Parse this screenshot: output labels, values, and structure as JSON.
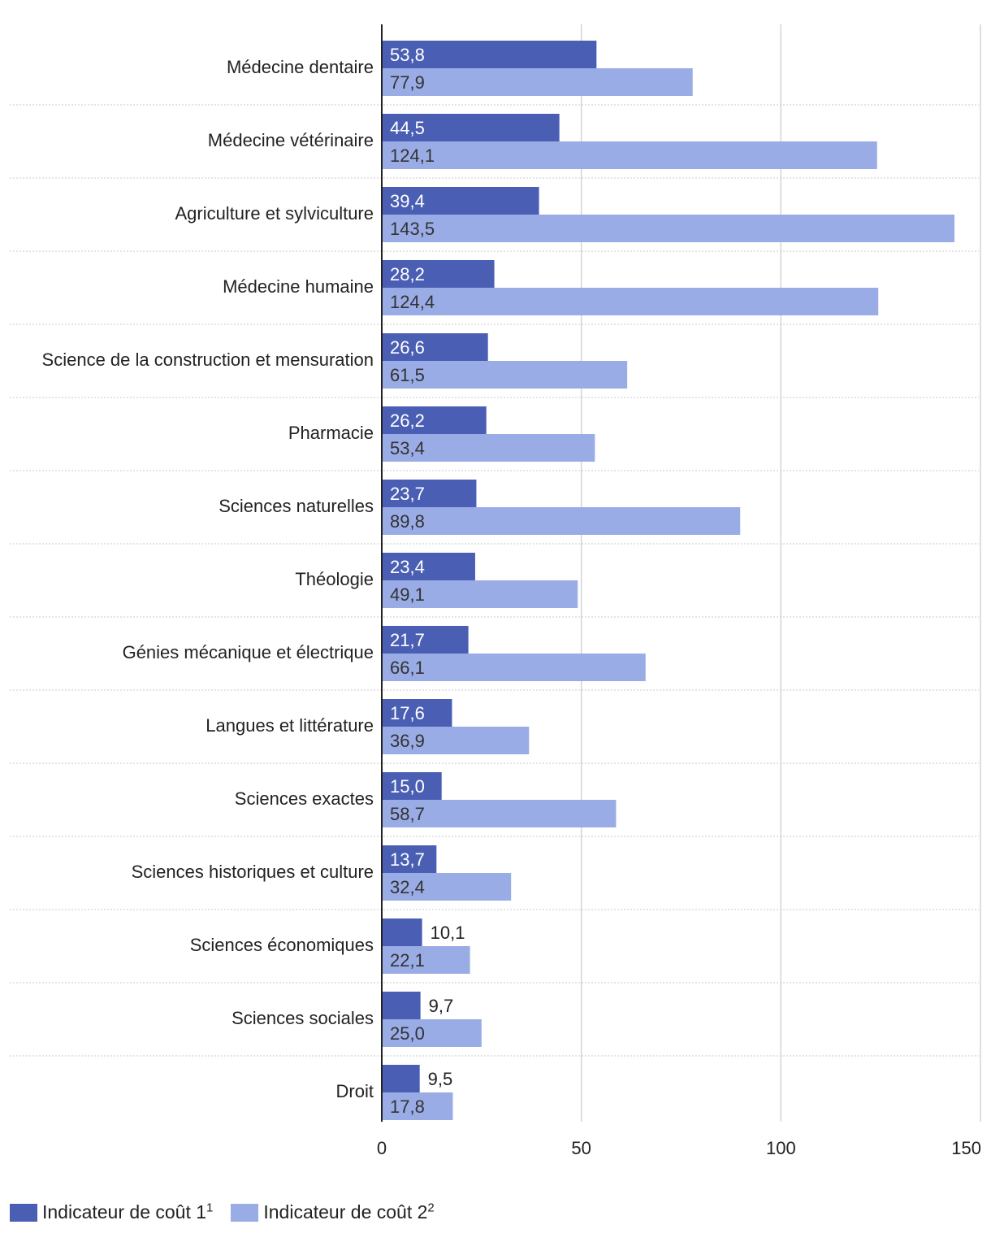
{
  "chart_data": {
    "type": "bar",
    "orientation": "horizontal",
    "title": "",
    "xlabel": "",
    "ylabel": "",
    "xlim": [
      0,
      150
    ],
    "xticks": [
      0,
      50,
      100,
      150
    ],
    "xtick_labels": [
      "0",
      "50",
      "100",
      "150"
    ],
    "grid": true,
    "legend_position": "bottom-left",
    "categories": [
      "Médecine dentaire",
      "Médecine vétérinaire",
      "Agriculture et sylviculture",
      "Médecine humaine",
      "Science de la construction et mensuration",
      "Pharmacie",
      "Sciences naturelles",
      "Théologie",
      "Génies mécanique et électrique",
      "Langues et littérature",
      "Sciences exactes",
      "Sciences historiques et culture",
      "Sciences économiques",
      "Sciences sociales",
      "Droit"
    ],
    "series": [
      {
        "name": "Indicateur de coût 1",
        "footnote": "1",
        "color": "#4a5fb4",
        "values": [
          53.8,
          44.5,
          39.4,
          28.2,
          26.6,
          26.2,
          23.7,
          23.4,
          21.7,
          17.6,
          15.0,
          13.7,
          10.1,
          9.7,
          9.5
        ],
        "labels": [
          "53,8",
          "44,5",
          "39,4",
          "28,2",
          "26,6",
          "26,2",
          "23,7",
          "23,4",
          "21,7",
          "17,6",
          "15,0",
          "13,7",
          "10,1",
          "9,7",
          "9,5"
        ]
      },
      {
        "name": "Indicateur de coût 2",
        "footnote": "2",
        "color": "#9aace6",
        "values": [
          77.9,
          124.1,
          143.5,
          124.4,
          61.5,
          53.4,
          89.8,
          49.1,
          66.1,
          36.9,
          58.7,
          32.4,
          22.1,
          25.0,
          17.8
        ],
        "labels": [
          "77,9",
          "124,1",
          "143,5",
          "124,4",
          "61,5",
          "53,4",
          "89,8",
          "49,1",
          "66,1",
          "36,9",
          "58,7",
          "32,4",
          "22,1",
          "25,0",
          "17,8"
        ]
      }
    ]
  }
}
